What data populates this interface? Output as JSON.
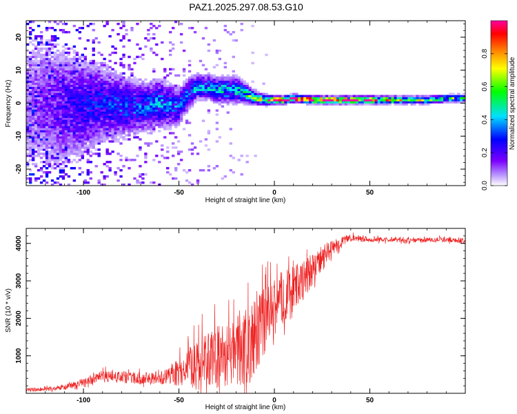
{
  "title": "PAZ1.2025.297.08.53.G10",
  "chart_data": [
    {
      "type": "heatmap",
      "title": "PAZ1.2025.297.08.53.G10",
      "xlabel": "Height of straight line (km)",
      "ylabel": "Frequency (Hz)",
      "xlim": [
        -130,
        100
      ],
      "ylim": [
        -25,
        25
      ],
      "xticks": [
        -100,
        -50,
        0,
        50
      ],
      "yticks": [
        -20,
        -10,
        0,
        10,
        20
      ],
      "colorbar": {
        "label": "Normalized spectral amplitude",
        "range": [
          0,
          1
        ],
        "ticks": [
          0.0,
          0.2,
          0.4,
          0.6,
          0.8
        ],
        "tick_labels": [
          "0.0",
          "0.2",
          "0.4",
          "0.6",
          "0.8"
        ],
        "colormap": [
          "#ffffff",
          "#7b00ff",
          "#0000ff",
          "#00e0ff",
          "#00ff00",
          "#ffff00",
          "#ff8000",
          "#ff0000",
          "#ff00a0"
        ]
      },
      "ridge": {
        "x": [
          -130,
          -120,
          -110,
          -100,
          -90,
          -80,
          -70,
          -60,
          -50,
          -45,
          -40,
          -35,
          -30,
          -25,
          -20,
          -15,
          -10,
          -5,
          0,
          5,
          10,
          20,
          30,
          40,
          50,
          60,
          70,
          80,
          90,
          100
        ],
        "freq": [
          0,
          0,
          -1,
          -1,
          0,
          -1,
          -1,
          0,
          -1,
          3,
          5,
          5,
          4,
          4,
          4,
          3,
          1.5,
          1,
          1,
          1,
          1.5,
          1,
          1,
          1,
          1,
          1,
          1,
          1,
          1.5,
          1.5
        ],
        "amp": [
          0.08,
          0.12,
          0.18,
          0.22,
          0.25,
          0.28,
          0.3,
          0.32,
          0.3,
          0.3,
          0.35,
          0.35,
          0.38,
          0.4,
          0.42,
          0.45,
          0.55,
          0.7,
          0.85,
          0.9,
          0.92,
          0.9,
          0.9,
          0.88,
          0.8,
          0.7,
          0.62,
          0.55,
          0.5,
          0.48
        ],
        "spread": [
          14,
          12,
          10,
          8,
          6,
          5,
          4,
          4,
          3,
          2.5,
          2,
          2,
          2,
          2,
          2,
          1.5,
          1,
          0.8,
          0.6,
          0.6,
          0.6,
          0.6,
          0.6,
          0.6,
          0.6,
          0.6,
          0.6,
          0.6,
          0.6,
          0.6
        ]
      }
    },
    {
      "type": "line",
      "xlabel": "Height of straight line (km)",
      "ylabel": "SNR (10 * v/v)",
      "xlim": [
        -130,
        100
      ],
      "ylim": [
        0,
        4400
      ],
      "xticks": [
        -100,
        -50,
        0,
        50
      ],
      "yticks": [
        1000,
        2000,
        3000,
        4000
      ],
      "series": [
        {
          "name": "SNR",
          "color": "#ee2222",
          "x": [
            -130,
            -120,
            -110,
            -100,
            -90,
            -80,
            -70,
            -60,
            -55,
            -50,
            -45,
            -40,
            -35,
            -30,
            -25,
            -20,
            -15,
            -10,
            -5,
            0,
            5,
            10,
            15,
            20,
            25,
            30,
            35,
            40,
            45,
            50,
            60,
            70,
            80,
            90,
            100
          ],
          "mean": [
            90,
            110,
            150,
            300,
            450,
            420,
            400,
            420,
            450,
            600,
            700,
            800,
            850,
            900,
            1000,
            1100,
            1250,
            1500,
            1900,
            2300,
            2600,
            2800,
            3000,
            3300,
            3600,
            3850,
            4050,
            4150,
            4120,
            4100,
            4100,
            4080,
            4100,
            4100,
            4050
          ],
          "amplitude": [
            60,
            60,
            80,
            120,
            180,
            180,
            180,
            200,
            250,
            400,
            600,
            800,
            900,
            1000,
            1000,
            1100,
            1100,
            1100,
            1000,
            900,
            800,
            700,
            600,
            500,
            400,
            250,
            150,
            100,
            80,
            70,
            70,
            70,
            70,
            70,
            70
          ]
        }
      ]
    }
  ]
}
